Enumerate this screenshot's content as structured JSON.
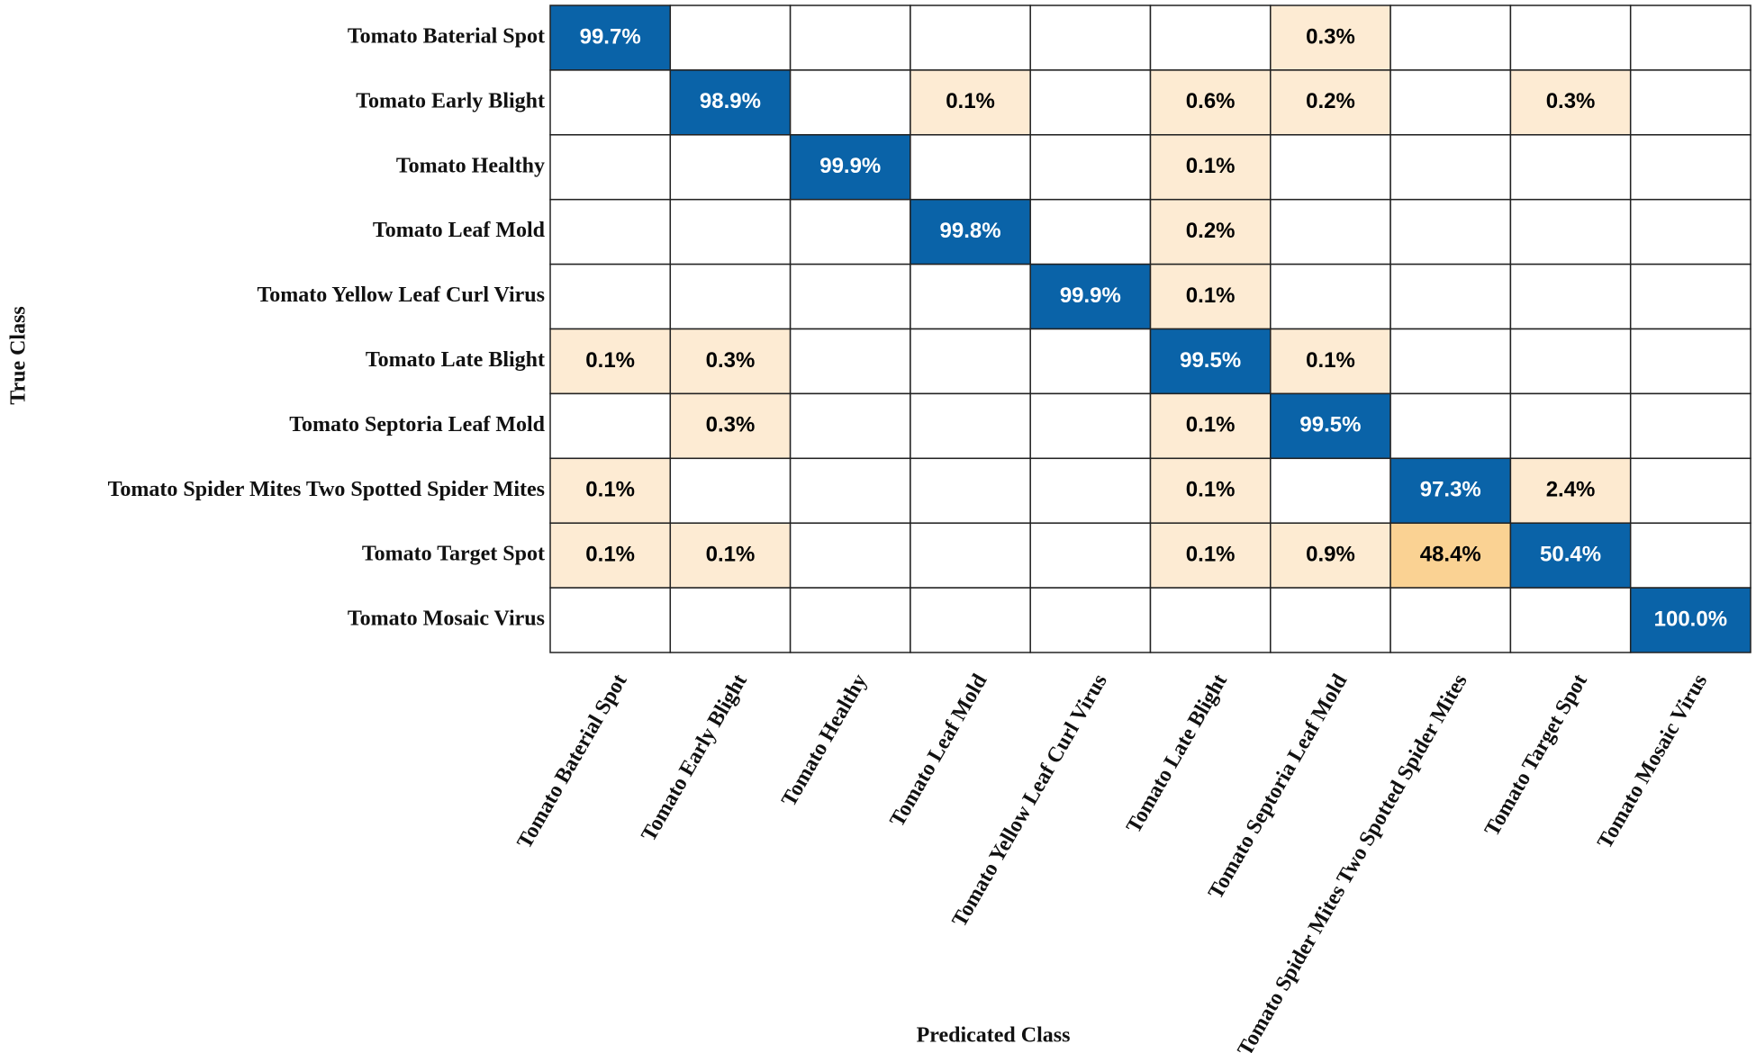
{
  "chart_data": {
    "type": "heatmap",
    "x_label": "Predicated Class",
    "y_label": "True Class",
    "x_categories": [
      "Tomato Baterial Spot",
      "Tomato Early Blight",
      "Tomato Healthy",
      "Tomato Leaf Mold",
      "Tomato Yellow Leaf Curl Virus",
      "Tomato Late Blight",
      "Tomato Septoria Leaf Mold",
      "Tomato Spider Mites Two Spotted Spider Mites",
      "Tomato Target Spot",
      "Tomato Mosaic Virus"
    ],
    "y_categories": [
      "Tomato Baterial Spot",
      "Tomato Early Blight",
      "Tomato Healthy",
      "Tomato Leaf Mold",
      "Tomato Yellow Leaf Curl Virus",
      "Tomato Late Blight",
      "Tomato Septoria Leaf Mold",
      "Tomato Spider Mites Two Spotted Spider Mites",
      "Tomato Target Spot",
      "Tomato Mosaic Virus"
    ],
    "values": [
      [
        99.7,
        null,
        null,
        null,
        null,
        null,
        0.3,
        null,
        null,
        null
      ],
      [
        null,
        98.9,
        null,
        0.1,
        null,
        0.6,
        0.2,
        null,
        0.3,
        null
      ],
      [
        null,
        null,
        99.9,
        null,
        null,
        0.1,
        null,
        null,
        null,
        null
      ],
      [
        null,
        null,
        null,
        99.8,
        null,
        0.2,
        null,
        null,
        null,
        null
      ],
      [
        null,
        null,
        null,
        null,
        99.9,
        0.1,
        null,
        null,
        null,
        null
      ],
      [
        0.1,
        0.3,
        null,
        null,
        null,
        99.5,
        0.1,
        null,
        null,
        null
      ],
      [
        null,
        0.3,
        null,
        null,
        null,
        0.1,
        99.5,
        null,
        null,
        null
      ],
      [
        0.1,
        null,
        null,
        null,
        null,
        0.1,
        null,
        97.3,
        2.4,
        null
      ],
      [
        0.1,
        0.1,
        null,
        null,
        null,
        0.1,
        0.9,
        48.4,
        50.4,
        null
      ],
      [
        null,
        null,
        null,
        null,
        null,
        null,
        null,
        null,
        null,
        100.0
      ]
    ],
    "value_labels": [
      [
        "99.7%",
        null,
        null,
        null,
        null,
        null,
        "0.3%",
        null,
        null,
        null
      ],
      [
        null,
        "98.9%",
        null,
        "0.1%",
        null,
        "0.6%",
        "0.2%",
        null,
        "0.3%",
        null
      ],
      [
        null,
        null,
        "99.9%",
        null,
        null,
        "0.1%",
        null,
        null,
        null,
        null
      ],
      [
        null,
        null,
        null,
        "99.8%",
        null,
        "0.2%",
        null,
        null,
        null,
        null
      ],
      [
        null,
        null,
        null,
        null,
        "99.9%",
        "0.1%",
        null,
        null,
        null,
        null
      ],
      [
        "0.1%",
        "0.3%",
        null,
        null,
        null,
        "99.5%",
        "0.1%",
        null,
        null,
        null
      ],
      [
        null,
        "0.3%",
        null,
        null,
        null,
        "0.1%",
        "99.5%",
        null,
        null,
        null
      ],
      [
        "0.1%",
        null,
        null,
        null,
        null,
        "0.1%",
        null,
        "97.3%",
        "2.4%",
        null
      ],
      [
        "0.1%",
        "0.1%",
        null,
        null,
        null,
        "0.1%",
        "0.9%",
        "48.4%",
        "50.4%",
        null
      ],
      [
        null,
        null,
        null,
        null,
        null,
        null,
        null,
        null,
        null,
        "100.0%"
      ]
    ],
    "colors": {
      "diagonal": "#0a63a8",
      "off_low": "#fdebd3",
      "off_high": "#f6b84f",
      "empty": "#ffffff"
    }
  }
}
